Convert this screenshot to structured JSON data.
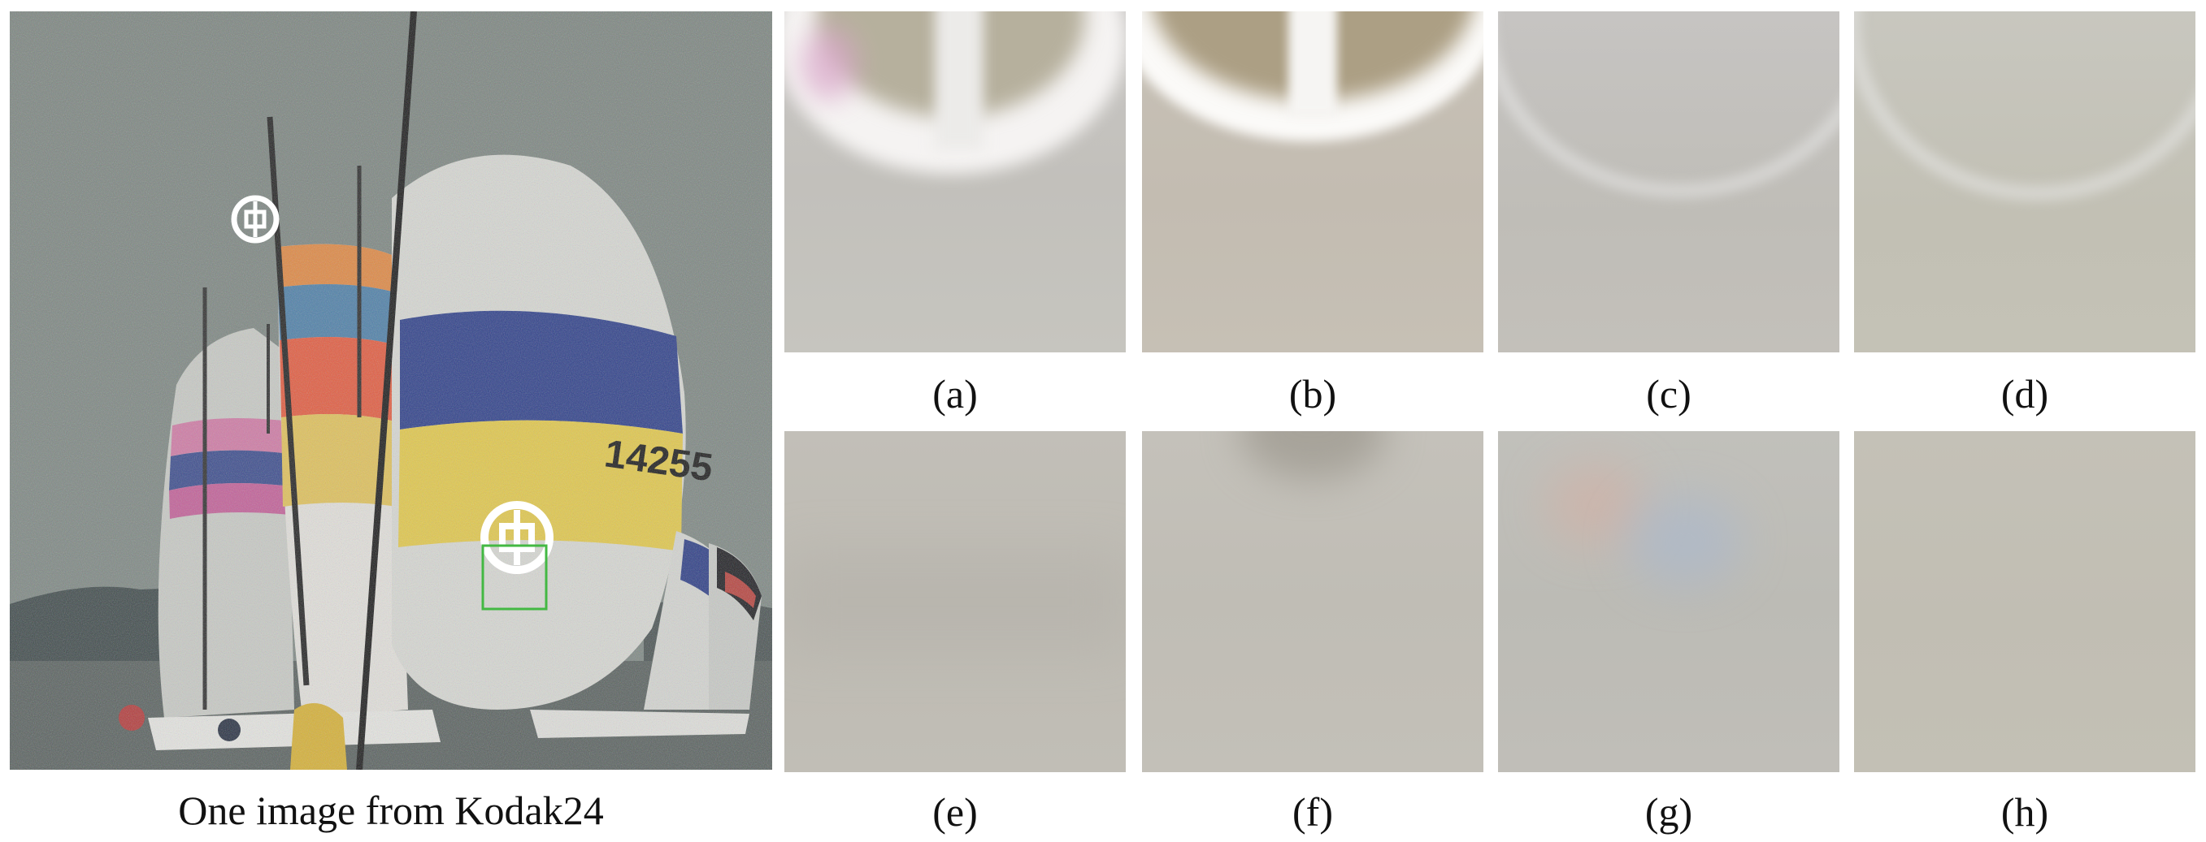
{
  "main_image": {
    "caption": "One image from Kodak24",
    "sail_number": "14255",
    "marker_color": "#43b843"
  },
  "crops": [
    {
      "id": "a",
      "label": "(a)"
    },
    {
      "id": "b",
      "label": "(b)"
    },
    {
      "id": "c",
      "label": "(c)"
    },
    {
      "id": "d",
      "label": "(d)"
    },
    {
      "id": "e",
      "label": "(e)"
    },
    {
      "id": "f",
      "label": "(f)"
    },
    {
      "id": "g",
      "label": "(g)"
    },
    {
      "id": "h",
      "label": "(h)"
    }
  ]
}
